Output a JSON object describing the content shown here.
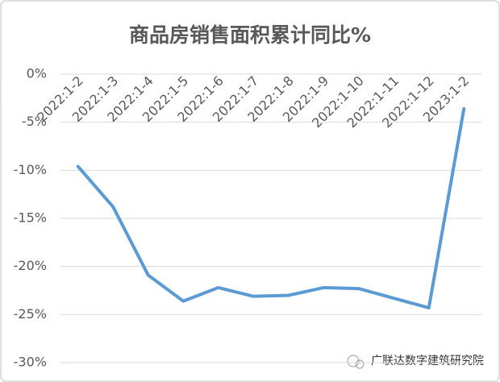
{
  "chart_data": {
    "type": "line",
    "title": "商品房销售面积累计同比%",
    "categories": [
      "2022:1-2",
      "2022:1-3",
      "2022:1-4",
      "2022:1-5",
      "2022:1-6",
      "2022:1-7",
      "2022:1-8",
      "2022:1-9",
      "2022:1-10",
      "2022:1-11",
      "2022:1-12",
      "2023:1-2"
    ],
    "series": [
      {
        "name": "商品房销售面积累计同比",
        "color": "#5b9bd5",
        "values": [
          -9.6,
          -13.8,
          -20.9,
          -23.6,
          -22.2,
          -23.1,
          -23.0,
          -22.2,
          -22.3,
          -23.3,
          -24.3,
          -3.6
        ]
      }
    ],
    "ylim": [
      -30,
      0
    ],
    "yticks": [
      {
        "value": 0,
        "label": "0%"
      },
      {
        "value": -5,
        "label": "-5%"
      },
      {
        "value": -10,
        "label": "-10%"
      },
      {
        "value": -15,
        "label": "-15%"
      },
      {
        "value": -20,
        "label": "-20%"
      },
      {
        "value": -25,
        "label": "-25%"
      },
      {
        "value": -30,
        "label": "-30%"
      }
    ],
    "grid": true
  },
  "watermark": "广联达数字建筑研究院"
}
